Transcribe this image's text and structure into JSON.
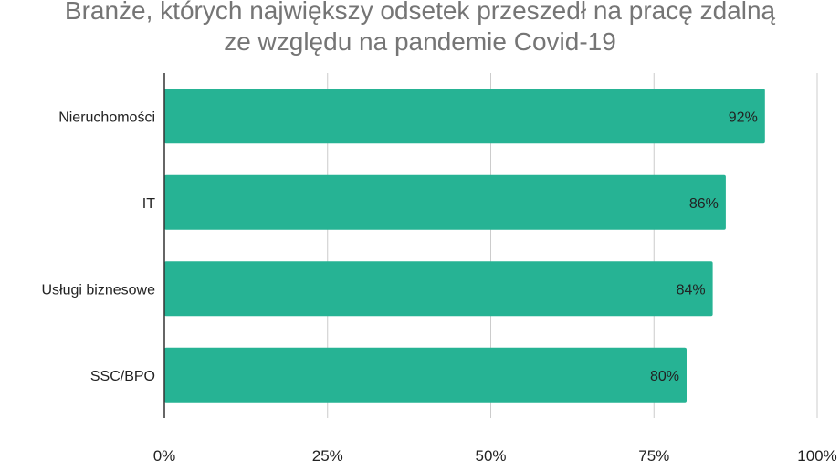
{
  "chart_data": {
    "type": "bar",
    "orientation": "horizontal",
    "title_lines": [
      "Branże, których największy odsetek przeszedł na pracę zdalną",
      "ze względu na pandemie Covid-19"
    ],
    "categories": [
      "Nieruchomości",
      "IT",
      "Usługi biznesowe",
      "SSC/BPO"
    ],
    "values": [
      92,
      86,
      84,
      80
    ],
    "value_labels": [
      "92%",
      "86%",
      "84%",
      "80%"
    ],
    "xlim": [
      0,
      100
    ],
    "x_ticks": [
      0,
      25,
      50,
      75,
      100
    ],
    "x_tick_labels": [
      "0%",
      "25%",
      "50%",
      "75%",
      "100%"
    ],
    "grid": true,
    "legend": "none",
    "bar_color": "#26b394",
    "xlabel": "",
    "ylabel": ""
  }
}
